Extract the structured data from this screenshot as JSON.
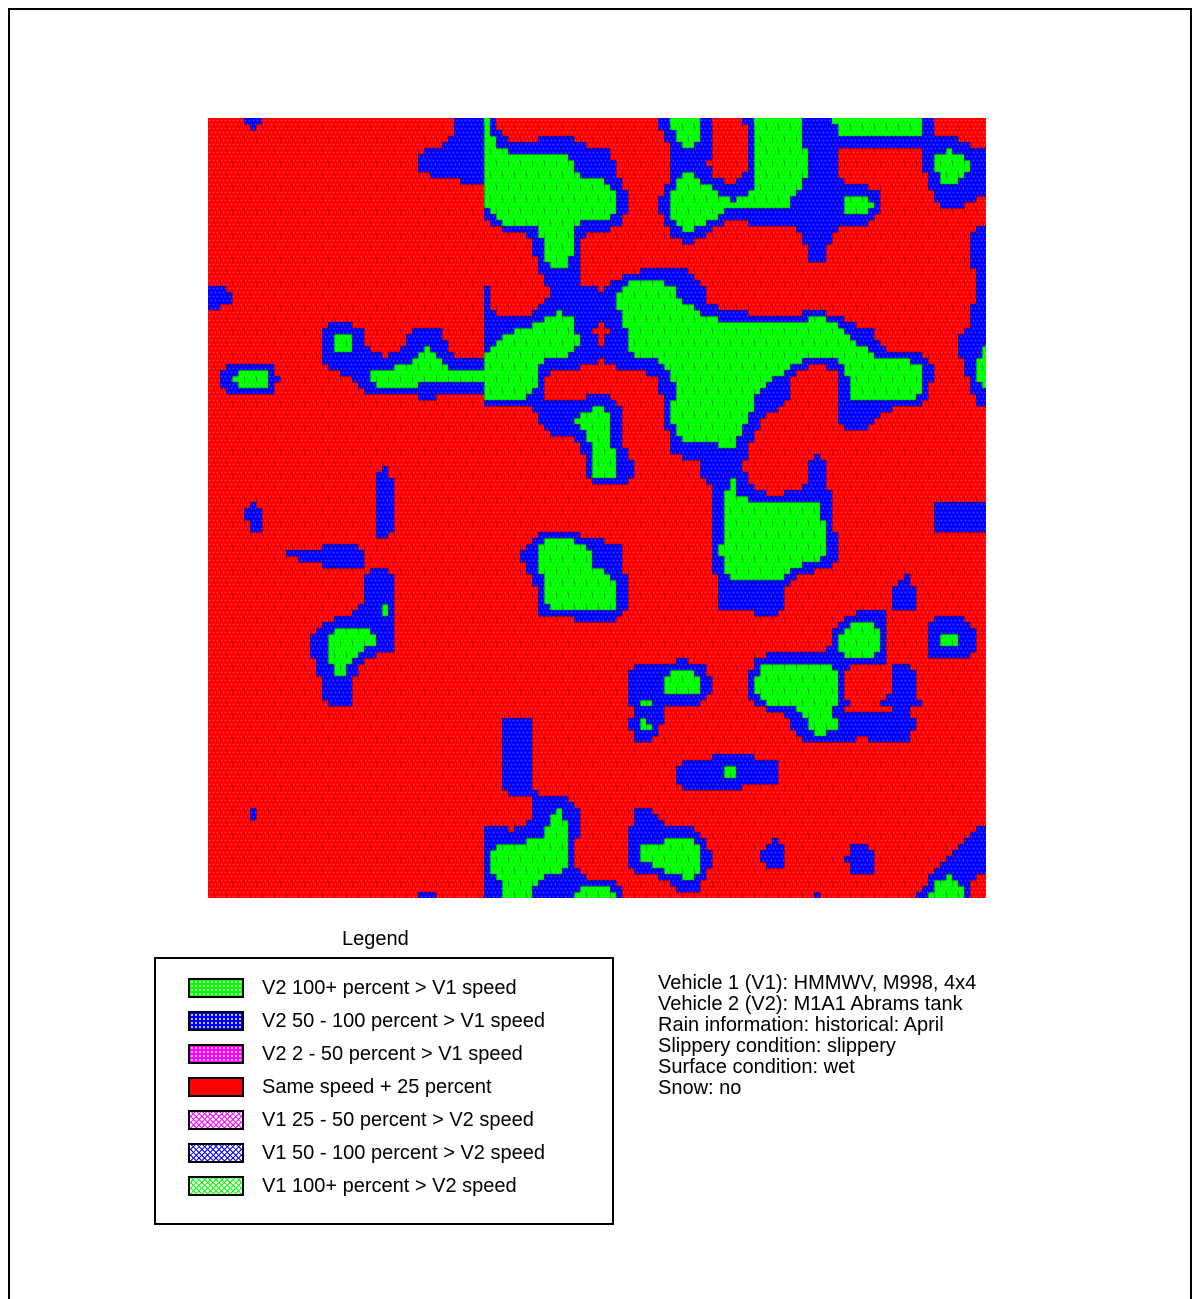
{
  "legend": {
    "title": "Legend",
    "items": [
      {
        "label": "V2 100+ percent > V1 speed",
        "color": "#00ff00",
        "pattern": "dotted"
      },
      {
        "label": "V2 50 - 100 percent > V1 speed",
        "color": "#0000ff",
        "pattern": "dotted"
      },
      {
        "label": "V2 2 - 50 percent > V1 speed",
        "color": "#ff00ff",
        "pattern": "dotted"
      },
      {
        "label": "Same speed + 25 percent",
        "color": "#ff0000",
        "pattern": "solid"
      },
      {
        "label": "V1 25 - 50 percent > V2 speed",
        "color": "#ff00ff",
        "pattern": "crosshatch"
      },
      {
        "label": "V1 50 - 100 percent > V2 speed",
        "color": "#0000ff",
        "pattern": "crosshatch"
      },
      {
        "label": "V1 100+ percent > V2 speed",
        "color": "#00ff00",
        "pattern": "crosshatch"
      }
    ]
  },
  "info": [
    "Vehicle 1 (V1): HMMWV, M998, 4x4",
    "Vehicle 2 (V2): M1A1 Abrams tank",
    "Rain information: historical: April",
    "Slippery condition: slippery",
    "Surface condition: wet",
    "Snow: no"
  ]
}
